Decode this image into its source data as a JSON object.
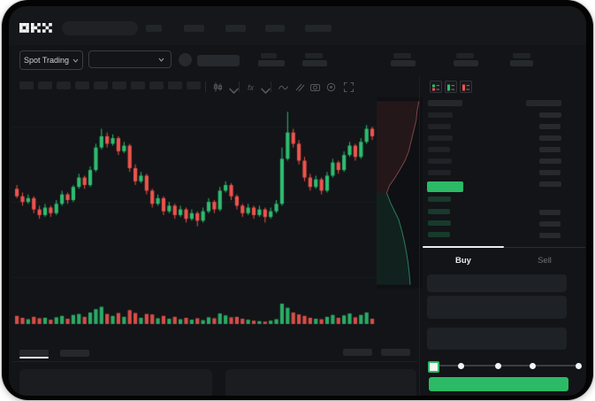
{
  "brand": "OKX",
  "header": {
    "market_selector_label": "Spot Trading",
    "nav_placeholder_count": 5,
    "stat_placeholder_count": 5
  },
  "chart_toolbar": {
    "timeframe_placeholder_count": 10,
    "icons": [
      "candle-style-icon",
      "chevron-down-icon",
      "indicators-icon",
      "chevron-down-icon",
      "line-tool-icon",
      "draw-tool-icon",
      "camera-icon",
      "settings-icon",
      "fullscreen-icon"
    ]
  },
  "order_book": {
    "view_icons": [
      "orderbook-combined-icon",
      "orderbook-bids-icon",
      "orderbook-asks-icon"
    ],
    "ask_rows": 6,
    "right_cells_above": 7,
    "bid_rows": 4,
    "right_cells_below": 3
  },
  "order_panel": {
    "buy_tab_label": "Buy",
    "sell_tab_label": "Sell",
    "form_field_count": 3,
    "slider_stops": 5
  },
  "colors": {
    "up_green": "#2ebd70",
    "down_red": "#ee544e",
    "accent_green": "#2cba66",
    "bid_row_green": "#183a2b",
    "depth_ask_line": "#7e4348",
    "depth_bid_line": "#2e7a5a"
  },
  "chart_data": {
    "type": "candlestick",
    "title": "",
    "xlabel": "",
    "ylabel": "",
    "axis_labels_visible": false,
    "h_gridlines": 3,
    "price_scale": {
      "min": 0,
      "max": 100,
      "units": "relative (no tick labels shown)"
    },
    "candles": [
      [
        56,
        58,
        51,
        52
      ],
      [
        52,
        54,
        47,
        49
      ],
      [
        49,
        53,
        48,
        51
      ],
      [
        51,
        52,
        43,
        45
      ],
      [
        45,
        47,
        40,
        42
      ],
      [
        42,
        48,
        41,
        46
      ],
      [
        46,
        47,
        41,
        43
      ],
      [
        43,
        50,
        42,
        48
      ],
      [
        48,
        55,
        47,
        53
      ],
      [
        53,
        54,
        48,
        50
      ],
      [
        50,
        58,
        49,
        57
      ],
      [
        57,
        64,
        56,
        62
      ],
      [
        62,
        63,
        56,
        58
      ],
      [
        58,
        68,
        57,
        66
      ],
      [
        66,
        80,
        65,
        78
      ],
      [
        78,
        88,
        77,
        84
      ],
      [
        84,
        86,
        78,
        80
      ],
      [
        80,
        85,
        79,
        83
      ],
      [
        83,
        84,
        74,
        76
      ],
      [
        76,
        81,
        75,
        79
      ],
      [
        79,
        80,
        65,
        67
      ],
      [
        67,
        69,
        58,
        60
      ],
      [
        60,
        65,
        59,
        63
      ],
      [
        63,
        64,
        53,
        55
      ],
      [
        55,
        56,
        46,
        48
      ],
      [
        48,
        53,
        47,
        51
      ],
      [
        51,
        52,
        42,
        44
      ],
      [
        44,
        49,
        43,
        47
      ],
      [
        47,
        48,
        40,
        42
      ],
      [
        42,
        47,
        41,
        45
      ],
      [
        45,
        46,
        38,
        40
      ],
      [
        40,
        45,
        39,
        43
      ],
      [
        43,
        44,
        36,
        39
      ],
      [
        39,
        46,
        38,
        44
      ],
      [
        44,
        51,
        43,
        49
      ],
      [
        49,
        50,
        43,
        45
      ],
      [
        45,
        57,
        44,
        55
      ],
      [
        55,
        60,
        54,
        58
      ],
      [
        58,
        59,
        50,
        52
      ],
      [
        52,
        53,
        45,
        47
      ],
      [
        47,
        48,
        41,
        43
      ],
      [
        43,
        48,
        42,
        46
      ],
      [
        46,
        47,
        40,
        42
      ],
      [
        42,
        47,
        41,
        45
      ],
      [
        45,
        46,
        38,
        41
      ],
      [
        41,
        46,
        40,
        44
      ],
      [
        44,
        50,
        43,
        48
      ],
      [
        48,
        78,
        47,
        72
      ],
      [
        72,
        97,
        71,
        86
      ],
      [
        86,
        88,
        78,
        80
      ],
      [
        80,
        82,
        69,
        71
      ],
      [
        71,
        73,
        60,
        62
      ],
      [
        62,
        64,
        55,
        57
      ],
      [
        57,
        63,
        56,
        61
      ],
      [
        61,
        62,
        53,
        55
      ],
      [
        55,
        65,
        54,
        63
      ],
      [
        63,
        72,
        62,
        70
      ],
      [
        70,
        71,
        64,
        66
      ],
      [
        66,
        76,
        65,
        74
      ],
      [
        74,
        81,
        73,
        79
      ],
      [
        79,
        80,
        71,
        73
      ],
      [
        73,
        83,
        72,
        81
      ],
      [
        81,
        90,
        80,
        88
      ],
      [
        88,
        89,
        82,
        84
      ]
    ],
    "volume": [
      34,
      26,
      20,
      30,
      24,
      26,
      18,
      28,
      34,
      22,
      38,
      42,
      30,
      48,
      62,
      72,
      42,
      34,
      46,
      30,
      58,
      46,
      26,
      42,
      40,
      24,
      34,
      22,
      30,
      20,
      26,
      18,
      24,
      16,
      28,
      24,
      44,
      36,
      28,
      30,
      22,
      18,
      14,
      12,
      10,
      14,
      20,
      85,
      68,
      48,
      40,
      34,
      26,
      22,
      20,
      30,
      38,
      26,
      36,
      44,
      28,
      38,
      48,
      22
    ],
    "depth": {
      "orientation": "vertical (asks top / bids bottom), percent coordinates",
      "asks": [
        [
          92,
          2
        ],
        [
          88,
          7
        ],
        [
          86,
          12
        ],
        [
          80,
          18
        ],
        [
          74,
          24
        ],
        [
          70,
          28
        ],
        [
          62,
          33
        ],
        [
          50,
          38
        ],
        [
          40,
          42
        ],
        [
          28,
          46
        ],
        [
          22,
          50
        ]
      ],
      "bids": [
        [
          22,
          50
        ],
        [
          30,
          55
        ],
        [
          40,
          60
        ],
        [
          48,
          64
        ],
        [
          55,
          70
        ],
        [
          60,
          75
        ],
        [
          64,
          80
        ],
        [
          68,
          86
        ],
        [
          71,
          92
        ],
        [
          73,
          98
        ]
      ]
    }
  }
}
